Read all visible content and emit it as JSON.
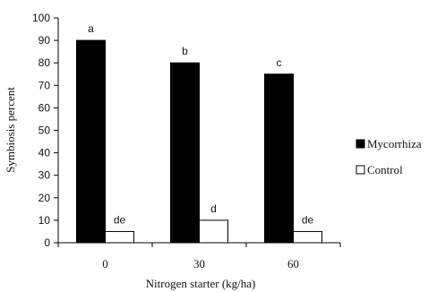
{
  "chart_data": {
    "type": "bar",
    "categories": [
      "0",
      "30",
      "60"
    ],
    "series": [
      {
        "name": "Mycorrhiza",
        "values": [
          90,
          80,
          75
        ],
        "color": "#000000",
        "labels": [
          "a",
          "b",
          "c"
        ]
      },
      {
        "name": "Control",
        "values": [
          5,
          10,
          5
        ],
        "color": "#ffffff",
        "labels": [
          "de",
          "d",
          "de"
        ]
      }
    ],
    "xlabel": "Nitrogen starter (kg/ha)",
    "ylabel": "Symbiosis percent",
    "ylim": [
      0,
      100
    ],
    "yticks": [
      0,
      10,
      20,
      30,
      40,
      50,
      60,
      70,
      80,
      90,
      100
    ],
    "grid": false,
    "legend": "right"
  }
}
